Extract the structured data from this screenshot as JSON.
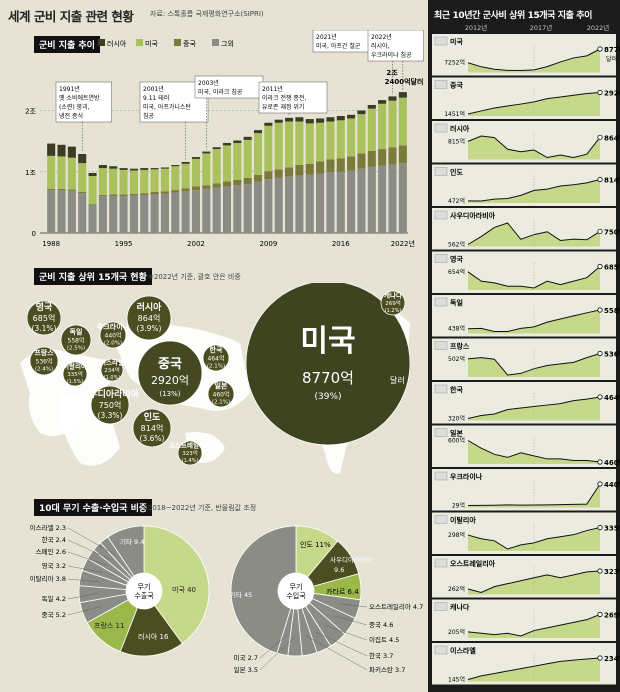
{
  "title": "세계 군비 지출 관련 현황",
  "source": "자료: 스톡홀름 국제평화연구소(SIPRI)",
  "colors": {
    "usa": "#a9c25e",
    "china": "#7a7a3a",
    "russia": "#3c3c22",
    "other": "#8c8c86",
    "panel": "#1b1b1b",
    "green": "#c6d98a",
    "dark": "#4a4e21"
  },
  "section1": {
    "label": "군비 지출 추이",
    "legend": [
      "러시아",
      "미국",
      "중국",
      "그외"
    ],
    "y_ticks": [
      "2조",
      "1조",
      "0"
    ],
    "x_ticks": [
      "1988",
      "1995",
      "2002",
      "2009",
      "2016",
      "2022년"
    ],
    "annotations": [
      {
        "year": 1991,
        "text": [
          "1991년",
          "옛 소비에트연방",
          "(소련) 붕괴,",
          "냉전 종식"
        ]
      },
      {
        "year": 2001,
        "text": [
          "2001년",
          "9.11 테러",
          "미국, 아프가니스탄",
          "침공"
        ]
      },
      {
        "year": 2003,
        "text": [
          "2003년",
          "미국, 이라크 침공"
        ]
      },
      {
        "year": 2011,
        "text": [
          "2011년",
          "이라크 전쟁 종전,",
          "유로존 재정 위기"
        ]
      },
      {
        "year": 2021,
        "text": [
          "2021년",
          "미국, 아프간 철군"
        ]
      },
      {
        "year": 2022,
        "text": [
          "2022년",
          "러시아,",
          "우크라이나 침공"
        ]
      }
    ],
    "callout": [
      "2조",
      "2400억달러"
    ]
  },
  "chart_data": [
    {
      "type": "bar",
      "title": "군비 지출 추이",
      "stacked": true,
      "categories": [
        1988,
        1989,
        1990,
        1991,
        1992,
        1993,
        1994,
        1995,
        1996,
        1997,
        1998,
        1999,
        2000,
        2001,
        2002,
        2003,
        2004,
        2005,
        2006,
        2007,
        2008,
        2009,
        2010,
        2011,
        2012,
        2013,
        2014,
        2015,
        2016,
        2017,
        2018,
        2019,
        2020,
        2021,
        2022
      ],
      "series": [
        {
          "name": "그외",
          "values": [
            0.7,
            0.7,
            0.69,
            0.65,
            0.45,
            0.6,
            0.6,
            0.6,
            0.61,
            0.62,
            0.63,
            0.64,
            0.66,
            0.68,
            0.7,
            0.72,
            0.74,
            0.76,
            0.78,
            0.8,
            0.84,
            0.88,
            0.9,
            0.92,
            0.94,
            0.95,
            0.97,
            0.99,
            1.0,
            1.02,
            1.05,
            1.08,
            1.1,
            1.12,
            1.14
          ]
        },
        {
          "name": "중국",
          "values": [
            0.02,
            0.02,
            0.02,
            0.02,
            0.02,
            0.02,
            0.03,
            0.03,
            0.03,
            0.03,
            0.04,
            0.04,
            0.04,
            0.05,
            0.06,
            0.06,
            0.07,
            0.08,
            0.09,
            0.1,
            0.11,
            0.13,
            0.14,
            0.15,
            0.17,
            0.18,
            0.2,
            0.21,
            0.22,
            0.23,
            0.25,
            0.26,
            0.27,
            0.28,
            0.29
          ]
        },
        {
          "name": "미국",
          "values": [
            0.54,
            0.53,
            0.52,
            0.47,
            0.46,
            0.44,
            0.42,
            0.4,
            0.38,
            0.38,
            0.37,
            0.37,
            0.39,
            0.4,
            0.45,
            0.52,
            0.56,
            0.59,
            0.6,
            0.62,
            0.68,
            0.74,
            0.76,
            0.75,
            0.71,
            0.66,
            0.63,
            0.62,
            0.62,
            0.62,
            0.64,
            0.69,
            0.74,
            0.76,
            0.78
          ]
        },
        {
          "name": "러시아",
          "values": [
            0.2,
            0.19,
            0.18,
            0.15,
            0.05,
            0.05,
            0.04,
            0.03,
            0.03,
            0.03,
            0.02,
            0.02,
            0.02,
            0.03,
            0.03,
            0.03,
            0.03,
            0.04,
            0.04,
            0.05,
            0.05,
            0.05,
            0.05,
            0.06,
            0.07,
            0.07,
            0.07,
            0.07,
            0.07,
            0.06,
            0.06,
            0.06,
            0.06,
            0.07,
            0.09
          ]
        }
      ],
      "ylim": [
        0,
        2.4
      ]
    },
    {
      "type": "pie",
      "title": "무기 수출국",
      "slices": [
        {
          "label": "미국",
          "value": 40
        },
        {
          "label": "러시아",
          "value": 16
        },
        {
          "label": "프랑스",
          "value": 11
        },
        {
          "label": "중국",
          "value": 5.2
        },
        {
          "label": "독일",
          "value": 4.2
        },
        {
          "label": "이탈리아",
          "value": 3.8
        },
        {
          "label": "영국",
          "value": 3.2
        },
        {
          "label": "스페인",
          "value": 2.6
        },
        {
          "label": "한국",
          "value": 2.4
        },
        {
          "label": "이스라엘",
          "value": 2.3
        },
        {
          "label": "기타",
          "value": 9.4
        }
      ]
    },
    {
      "type": "pie",
      "title": "무기 수입국",
      "slices": [
        {
          "label": "인도",
          "value": 11
        },
        {
          "label": "사우디아라비아",
          "value": 9.6
        },
        {
          "label": "카타르",
          "value": 6.4
        },
        {
          "label": "오스트레일리아",
          "value": 4.7
        },
        {
          "label": "중국",
          "value": 4.6
        },
        {
          "label": "이집트",
          "value": 4.5
        },
        {
          "label": "한국",
          "value": 3.7
        },
        {
          "label": "파키스탄",
          "value": 3.7
        },
        {
          "label": "일본",
          "value": 3.5
        },
        {
          "label": "미국",
          "value": 2.7
        },
        {
          "label": "기타",
          "value": 45
        }
      ]
    }
  ],
  "section2": {
    "label": "군비 지출 상위 15개국 현황",
    "note": "※2022년 기준, 괄호 안은 비중",
    "bubbles": [
      {
        "name": "미국",
        "value": "8770억",
        "share": "(39%)",
        "unit": "달러"
      },
      {
        "name": "중국",
        "value": "2920억",
        "share": "(13%)"
      },
      {
        "name": "러시아",
        "value": "864억",
        "share": "(3.9%)"
      },
      {
        "name": "인도",
        "value": "814억",
        "share": "(3.6%)"
      },
      {
        "name": "사우디아라비아",
        "value": "750억",
        "share": "(3.3%)"
      },
      {
        "name": "영국",
        "value": "685억",
        "share": "(3.1%)"
      },
      {
        "name": "독일",
        "value": "558억",
        "share": "(2.5%)"
      },
      {
        "name": "프랑스",
        "value": "536억",
        "share": "(2.4%)"
      },
      {
        "name": "한국",
        "value": "464억",
        "share": "(2.1%)"
      },
      {
        "name": "일본",
        "value": "460억",
        "share": "(2.1%)"
      },
      {
        "name": "우크라이나",
        "value": "440억",
        "share": "(2.0%)"
      },
      {
        "name": "이탈리아",
        "value": "335억",
        "share": "(1.5%)"
      },
      {
        "name": "오스트레일리아",
        "value": "323억",
        "share": "(1.4%)"
      },
      {
        "name": "캐나다",
        "value": "269억",
        "share": "(1.2%)"
      },
      {
        "name": "이스라엘",
        "value": "234억",
        "share": "(1.0%)"
      }
    ]
  },
  "section3": {
    "label": "10대 무기 수출·수입국 비중",
    "note": "※2018~2022년 기준, 반올림값 조정",
    "exp_center": [
      "무기",
      "수출국"
    ],
    "imp_center": [
      "무기",
      "수입국"
    ]
  },
  "right": {
    "title": "최근 10년간 군사비 상위 15개국 지출 추이",
    "years": [
      "2012년",
      "2017년",
      "2022년"
    ],
    "countries": [
      {
        "name": "미국",
        "start": "7252억",
        "end": "8770억",
        "unit": "달러",
        "trend": [
          7252,
          6800,
          6530,
          6400,
          6390,
          6460,
          6820,
          7340,
          7780,
          8010,
          8770
        ]
      },
      {
        "name": "중국",
        "start": "1451억",
        "end": "2920억",
        "trend": [
          1451,
          1660,
          1860,
          2000,
          2130,
          2280,
          2500,
          2610,
          2730,
          2850,
          2920
        ]
      },
      {
        "name": "러시아",
        "start": "815억",
        "end": "864억",
        "trend": [
          815,
          880,
          860,
          720,
          690,
          710,
          620,
          650,
          620,
          660,
          864
        ]
      },
      {
        "name": "인도",
        "start": "472억",
        "end": "814억",
        "trend": [
          472,
          470,
          500,
          510,
          560,
          640,
          660,
          710,
          730,
          760,
          814
        ]
      },
      {
        "name": "사우디아라비아",
        "start": "562억",
        "end": "750억",
        "trend": [
          562,
          676,
          808,
          872,
          637,
          705,
          746,
          620,
          640,
          630,
          750
        ]
      },
      {
        "name": "영국",
        "start": "654억",
        "end": "685억",
        "trend": [
          654,
          600,
          590,
          570,
          570,
          560,
          600,
          580,
          600,
          620,
          685
        ]
      },
      {
        "name": "독일",
        "start": "438억",
        "end": "558억",
        "trend": [
          438,
          440,
          420,
          420,
          440,
          450,
          480,
          500,
          520,
          540,
          558
        ]
      },
      {
        "name": "프랑스",
        "start": "502억",
        "end": "536억",
        "trend": [
          502,
          510,
          500,
          400,
          410,
          440,
          460,
          470,
          480,
          510,
          536
        ]
      },
      {
        "name": "한국",
        "start": "320억",
        "end": "464억",
        "trend": [
          320,
          340,
          350,
          380,
          390,
          400,
          410,
          420,
          440,
          450,
          464
        ]
      },
      {
        "name": "일본",
        "start": "600억",
        "end": "460억",
        "trend": [
          600,
          550,
          510,
          490,
          520,
          500,
          480,
          480,
          470,
          470,
          460
        ]
      },
      {
        "name": "우크라이나",
        "start": "29억",
        "end": "440억",
        "trend": [
          29,
          32,
          34,
          40,
          35,
          38,
          40,
          45,
          50,
          55,
          440
        ]
      },
      {
        "name": "이탈리아",
        "start": "298억",
        "end": "335억",
        "trend": [
          298,
          280,
          270,
          230,
          250,
          260,
          280,
          290,
          300,
          320,
          335
        ]
      },
      {
        "name": "오스트레일리아",
        "start": "262억",
        "end": "323억",
        "trend": [
          262,
          250,
          270,
          280,
          290,
          300,
          310,
          300,
          310,
          320,
          323
        ]
      },
      {
        "name": "캐나다",
        "start": "205억",
        "end": "269억",
        "trend": [
          205,
          200,
          195,
          200,
          190,
          210,
          220,
          230,
          240,
          250,
          269
        ]
      },
      {
        "name": "이스라엘",
        "start": "145억",
        "end": "234억",
        "trend": [
          145,
          160,
          170,
          180,
          190,
          200,
          210,
          220,
          225,
          230,
          234
        ]
      }
    ]
  }
}
